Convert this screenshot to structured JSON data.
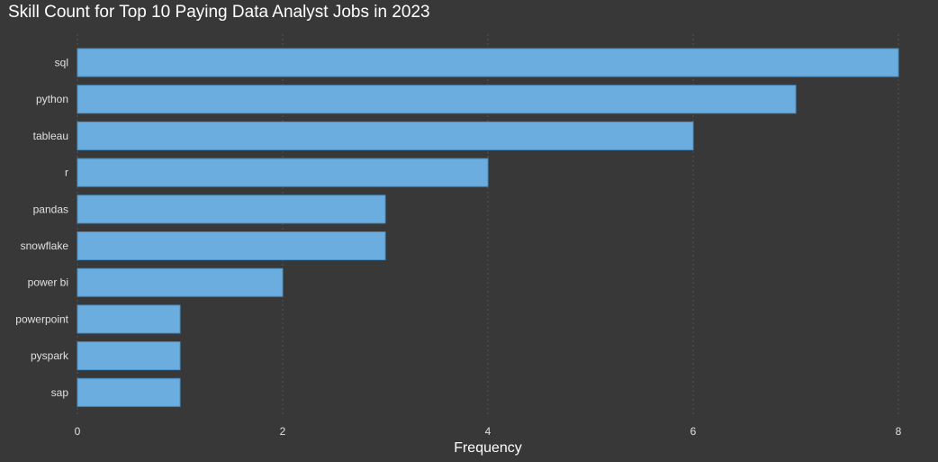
{
  "chart_data": {
    "type": "bar",
    "orientation": "horizontal",
    "title": "Skill Count for Top 10 Paying Data Analyst Jobs in 2023",
    "xlabel": "Frequency",
    "ylabel": "",
    "categories": [
      "sql",
      "python",
      "tableau",
      "r",
      "pandas",
      "snowflake",
      "power bi",
      "powerpoint",
      "pyspark",
      "sap"
    ],
    "values": [
      8,
      7,
      6,
      4,
      3,
      3,
      2,
      1,
      1,
      1
    ],
    "xlim": [
      0,
      8
    ],
    "xticks": [
      "0",
      "2",
      "4",
      "6",
      "8"
    ],
    "grid": "vertical dotted",
    "legend": "none",
    "colors": {
      "background": "#383838",
      "bar_fill": "#6cade0",
      "bar_stroke": "#4a8fc4",
      "grid": "#555555",
      "text": "#e0e0e0",
      "title": "#ffffff"
    }
  }
}
